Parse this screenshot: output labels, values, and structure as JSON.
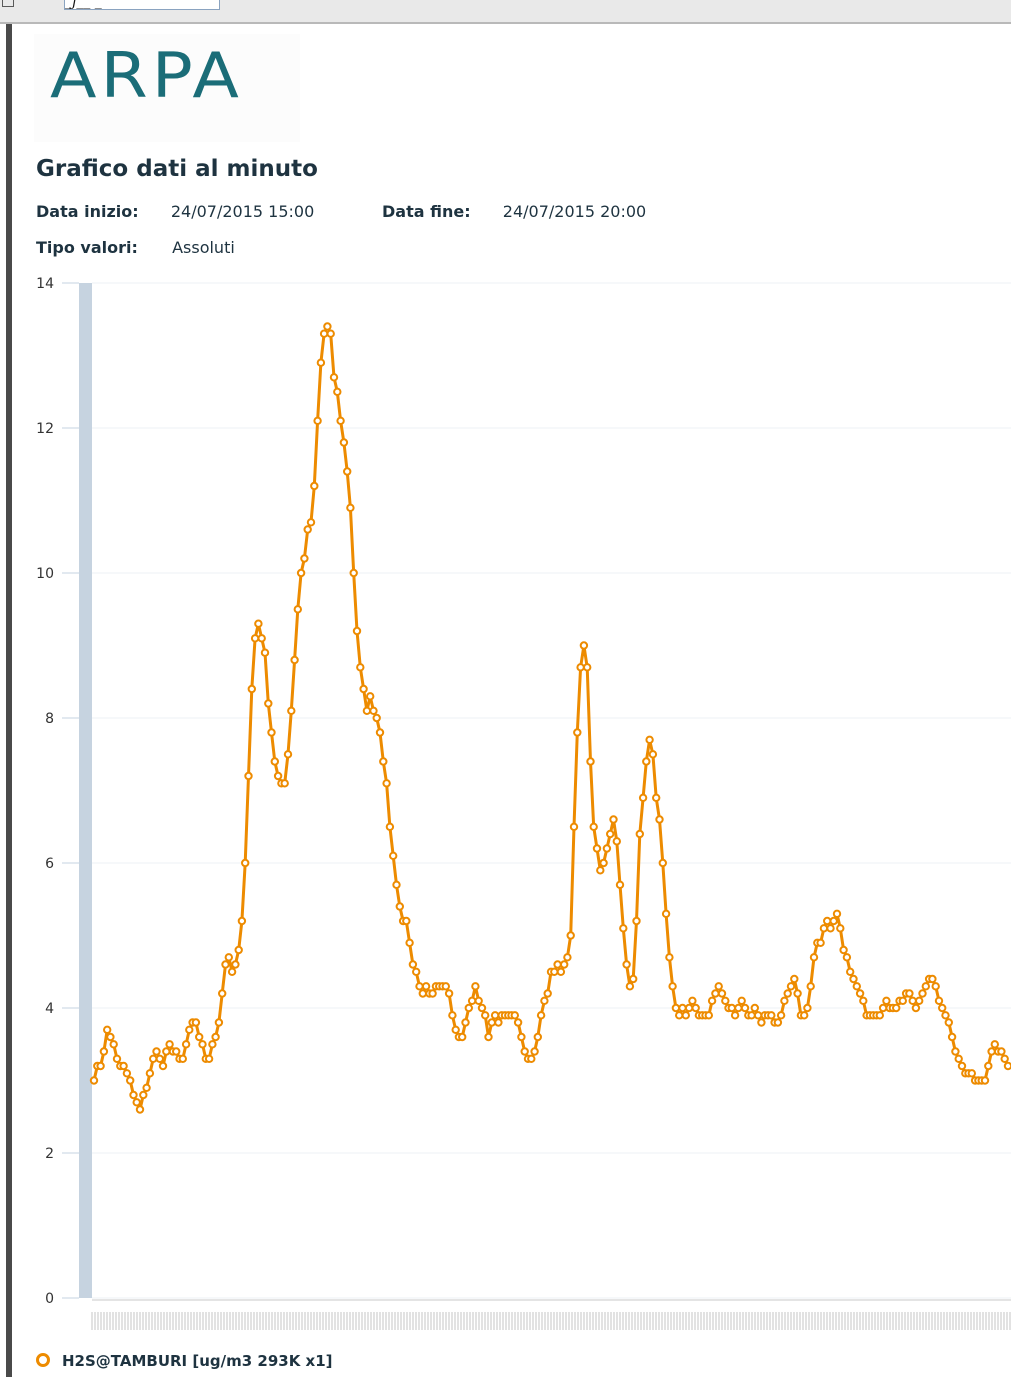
{
  "toolbar": {
    "field_text": "_j__ _"
  },
  "logo": {
    "text": "ARPA"
  },
  "page": {
    "title": "Grafico dati al minuto",
    "start_label": "Data inizio:",
    "start_value": "24/07/2015 15:00",
    "end_label": "Data fine:",
    "end_value": "24/07/2015 20:00",
    "type_label": "Tipo valori:",
    "type_value": "Assoluti"
  },
  "colors": {
    "series": "#ed8b00",
    "axis_band": "#c6d3e0",
    "grid": "#eef1f4",
    "title": "#1e3340",
    "logo": "#1b6d78"
  },
  "chart_data": {
    "type": "line",
    "title": "",
    "xlabel": "",
    "ylabel": "",
    "ylim": [
      0,
      14
    ],
    "yticks": [
      0,
      2,
      4,
      6,
      8,
      10,
      12,
      14
    ],
    "grid": true,
    "legend": "bottom-left",
    "series": [
      {
        "name": "H2S@TAMBURI [ug/m3 293K x1]",
        "color": "#ed8b00",
        "values": [
          3.0,
          3.2,
          3.2,
          3.4,
          3.7,
          3.6,
          3.5,
          3.3,
          3.2,
          3.2,
          3.1,
          3.0,
          2.8,
          2.7,
          2.6,
          2.8,
          2.9,
          3.1,
          3.3,
          3.4,
          3.3,
          3.2,
          3.4,
          3.5,
          3.4,
          3.4,
          3.3,
          3.3,
          3.5,
          3.7,
          3.8,
          3.8,
          3.6,
          3.5,
          3.3,
          3.3,
          3.5,
          3.6,
          3.8,
          4.2,
          4.6,
          4.7,
          4.5,
          4.6,
          4.8,
          5.2,
          6.0,
          7.2,
          8.4,
          9.1,
          9.3,
          9.1,
          8.9,
          8.2,
          7.8,
          7.4,
          7.2,
          7.1,
          7.1,
          7.5,
          8.1,
          8.8,
          9.5,
          10.0,
          10.2,
          10.6,
          10.7,
          11.2,
          12.1,
          12.9,
          13.3,
          13.4,
          13.3,
          12.7,
          12.5,
          12.1,
          11.8,
          11.4,
          10.9,
          10.0,
          9.2,
          8.7,
          8.4,
          8.1,
          8.3,
          8.1,
          8.0,
          7.8,
          7.4,
          7.1,
          6.5,
          6.1,
          5.7,
          5.4,
          5.2,
          5.2,
          4.9,
          4.6,
          4.5,
          4.3,
          4.2,
          4.3,
          4.2,
          4.2,
          4.3,
          4.3,
          4.3,
          4.3,
          4.2,
          3.9,
          3.7,
          3.6,
          3.6,
          3.8,
          4.0,
          4.1,
          4.3,
          4.1,
          4.0,
          3.9,
          3.6,
          3.8,
          3.9,
          3.8,
          3.9,
          3.9,
          3.9,
          3.9,
          3.9,
          3.8,
          3.6,
          3.4,
          3.3,
          3.3,
          3.4,
          3.6,
          3.9,
          4.1,
          4.2,
          4.5,
          4.5,
          4.6,
          4.5,
          4.6,
          4.7,
          5.0,
          6.5,
          7.8,
          8.7,
          9.0,
          8.7,
          7.4,
          6.5,
          6.2,
          5.9,
          6.0,
          6.2,
          6.4,
          6.6,
          6.3,
          5.7,
          5.1,
          4.6,
          4.3,
          4.4,
          5.2,
          6.4,
          6.9,
          7.4,
          7.7,
          7.5,
          6.9,
          6.6,
          6.0,
          5.3,
          4.7,
          4.3,
          4.0,
          3.9,
          4.0,
          3.9,
          4.0,
          4.1,
          4.0,
          3.9,
          3.9,
          3.9,
          3.9,
          4.1,
          4.2,
          4.3,
          4.2,
          4.1,
          4.0,
          4.0,
          3.9,
          4.0,
          4.1,
          4.0,
          3.9,
          3.9,
          4.0,
          3.9,
          3.8,
          3.9,
          3.9,
          3.9,
          3.8,
          3.8,
          3.9,
          4.1,
          4.2,
          4.3,
          4.4,
          4.2,
          3.9,
          3.9,
          4.0,
          4.3,
          4.7,
          4.9,
          4.9,
          5.1,
          5.2,
          5.1,
          5.2,
          5.3,
          5.1,
          4.8,
          4.7,
          4.5,
          4.4,
          4.3,
          4.2,
          4.1,
          3.9,
          3.9,
          3.9,
          3.9,
          3.9,
          4.0,
          4.1,
          4.0,
          4.0,
          4.0,
          4.1,
          4.1,
          4.2,
          4.2,
          4.1,
          4.0,
          4.1,
          4.2,
          4.3,
          4.4,
          4.4,
          4.3,
          4.1,
          4.0,
          3.9,
          3.8,
          3.6,
          3.4,
          3.3,
          3.2,
          3.1,
          3.1,
          3.1,
          3.0,
          3.0,
          3.0,
          3.0,
          3.2,
          3.4,
          3.5,
          3.4,
          3.4,
          3.3,
          3.2
        ]
      }
    ]
  }
}
